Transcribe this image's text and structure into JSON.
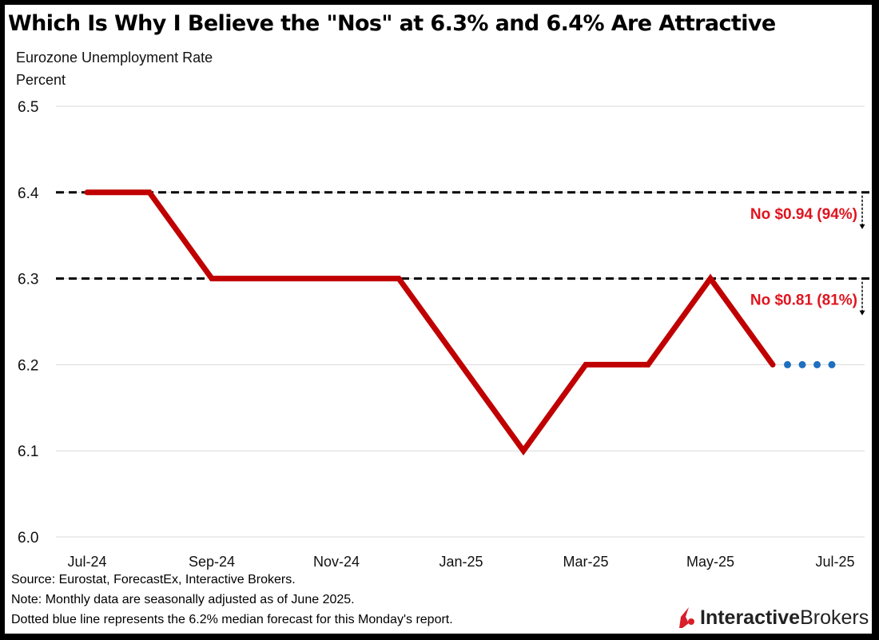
{
  "title": "Which Is Why I Believe the \"Nos\" at 6.3% and 6.4% Are Attractive",
  "subtitle_line1": "Eurozone Unemployment Rate",
  "subtitle_line2": "Percent",
  "notes": [
    "Source: Eurostat, ForecastEx, Interactive Brokers.",
    "Note: Monthly data are seasonally adjusted as of June 2025.",
    "Dotted blue line represents the 6.2% median forecast for this Monday's report."
  ],
  "logo": {
    "bold": "Interactive",
    "regular": "Brokers",
    "icon": "interactive-brokers-logo-icon"
  },
  "colors": {
    "series": "#C00000",
    "forecast": "#1F6FBF",
    "annotation": "#E0141E",
    "threshold": "#000000",
    "grid": "#D9D9D9"
  },
  "chart_data": {
    "type": "line",
    "title": "Which Is Why I Believe the \"Nos\" at 6.3% and 6.4% Are Attractive",
    "ylabel": "Percent",
    "xlabel": "",
    "ylim": [
      6.0,
      6.5
    ],
    "yticks": [
      "6.0",
      "6.1",
      "6.2",
      "6.3",
      "6.4",
      "6.5"
    ],
    "ytick_values": [
      6.0,
      6.1,
      6.2,
      6.3,
      6.4,
      6.5
    ],
    "grid": true,
    "x_tick_labels": [
      "Jul-24",
      "Sep-24",
      "Nov-24",
      "Jan-25",
      "Mar-25",
      "May-25",
      "Jul-25"
    ],
    "x_tick_index": [
      0,
      2,
      4,
      6,
      8,
      10,
      12
    ],
    "x": [
      "Jul-24",
      "Aug-24",
      "Sep-24",
      "Oct-24",
      "Nov-24",
      "Dec-24",
      "Jan-25",
      "Feb-25",
      "Mar-25",
      "Apr-25",
      "May-25",
      "Jun-25"
    ],
    "series": [
      {
        "name": "Eurozone Unemployment Rate",
        "values": [
          6.4,
          6.4,
          6.3,
          6.3,
          6.3,
          6.3,
          6.2,
          6.1,
          6.2,
          6.2,
          6.3,
          6.2
        ]
      },
      {
        "name": "Median forecast (dotted)",
        "x_index_range": [
          11,
          12
        ],
        "value": 6.2
      }
    ],
    "thresholds": [
      {
        "value": 6.4,
        "label": "No $0.94 (94%)"
      },
      {
        "value": 6.3,
        "label": "No $0.81 (81%)"
      }
    ]
  }
}
